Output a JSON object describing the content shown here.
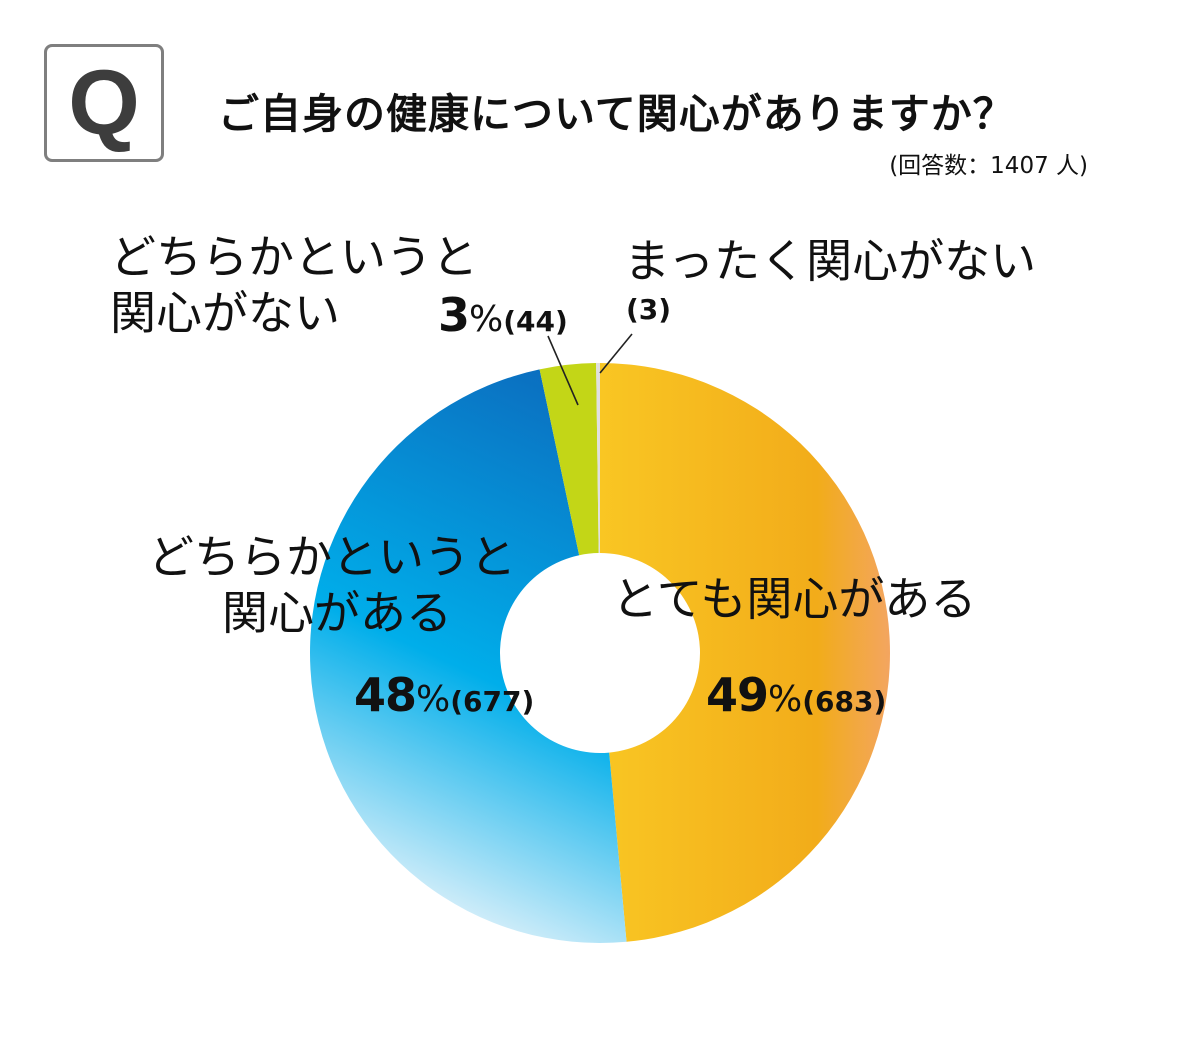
{
  "question": {
    "badge": "Q",
    "title": "ご自身の健康について関心がありますか？",
    "respondents": "(回答数：1407 人)"
  },
  "chart_data": {
    "type": "pie",
    "donut": true,
    "total": 1407,
    "slices": [
      {
        "label_line1": "とても関心がある",
        "label_line2": "",
        "percent": 49,
        "percent_text": "49",
        "count": 683,
        "count_text": "(683)",
        "color": "#f5b51c"
      },
      {
        "label_line1": "どちらかというと",
        "label_line2": "関心がある",
        "percent": 48,
        "percent_text": "48",
        "count": 677,
        "count_text": "(677)",
        "color": "#0d8ed8"
      },
      {
        "label_line1": "どちらかというと",
        "label_line2": "関心がない",
        "percent": 3,
        "percent_text": "3",
        "count": 44,
        "count_text": "(44)",
        "color": "#c3d617"
      },
      {
        "label_line1": "まったく関心がない",
        "label_line2": "",
        "percent": 0.2,
        "percent_text": "",
        "count": 3,
        "count_text": "(3)",
        "color": "#e0e0e0"
      }
    ],
    "percent_sign": "%"
  }
}
